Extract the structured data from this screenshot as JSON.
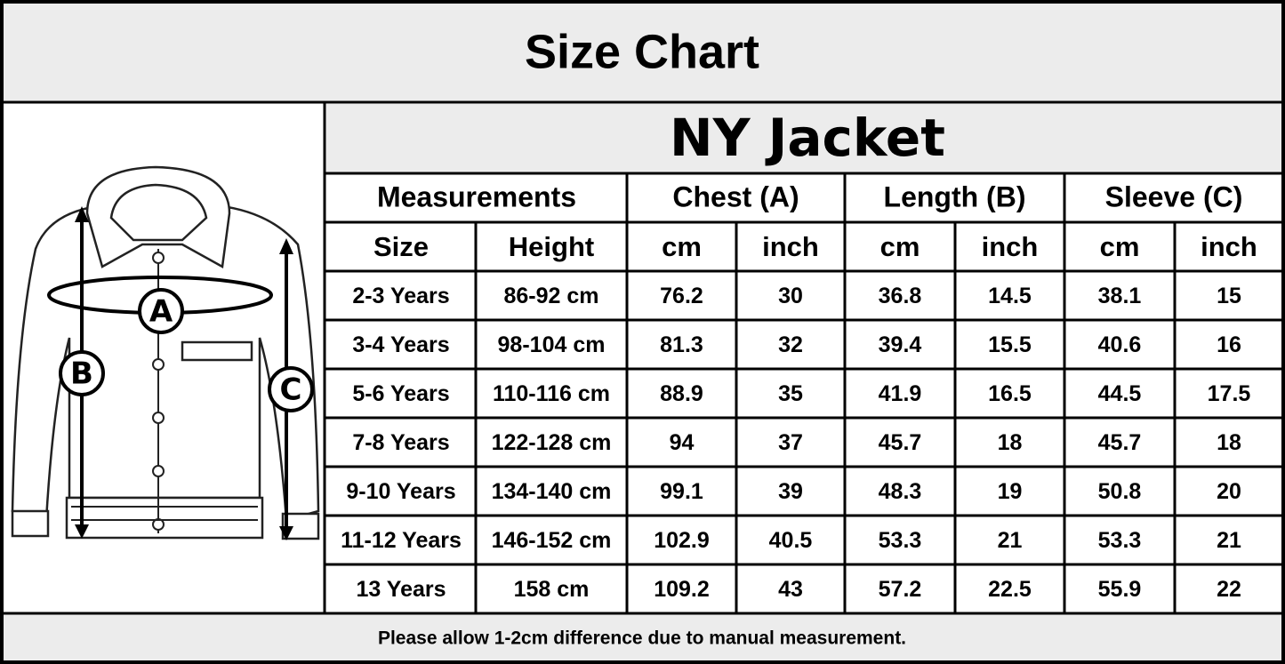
{
  "header": {
    "title": "Size Chart"
  },
  "diagram": {
    "labels": [
      "A",
      "B",
      "C"
    ]
  },
  "table": {
    "title": "NY Jacket",
    "groups": [
      "Measurements",
      "Chest (A)",
      "Length (B)",
      "Sleeve (C)"
    ],
    "columns": [
      "Size",
      "Height",
      "cm",
      "inch",
      "cm",
      "inch",
      "cm",
      "inch"
    ],
    "rows": [
      [
        "2-3 Years",
        "86-92 cm",
        "76.2",
        "30",
        "36.8",
        "14.5",
        "38.1",
        "15"
      ],
      [
        "3-4 Years",
        "98-104 cm",
        "81.3",
        "32",
        "39.4",
        "15.5",
        "40.6",
        "16"
      ],
      [
        "5-6 Years",
        "110-116 cm",
        "88.9",
        "35",
        "41.9",
        "16.5",
        "44.5",
        "17.5"
      ],
      [
        "7-8 Years",
        "122-128 cm",
        "94",
        "37",
        "45.7",
        "18",
        "45.7",
        "18"
      ],
      [
        "9-10 Years",
        "134-140 cm",
        "99.1",
        "39",
        "48.3",
        "19",
        "50.8",
        "20"
      ],
      [
        "11-12 Years",
        "146-152 cm",
        "102.9",
        "40.5",
        "53.3",
        "21",
        "53.3",
        "21"
      ],
      [
        "13 Years",
        "158 cm",
        "109.2",
        "43",
        "57.2",
        "22.5",
        "55.9",
        "22"
      ]
    ]
  },
  "footnote": "Please allow 1-2cm difference due to manual measurement."
}
